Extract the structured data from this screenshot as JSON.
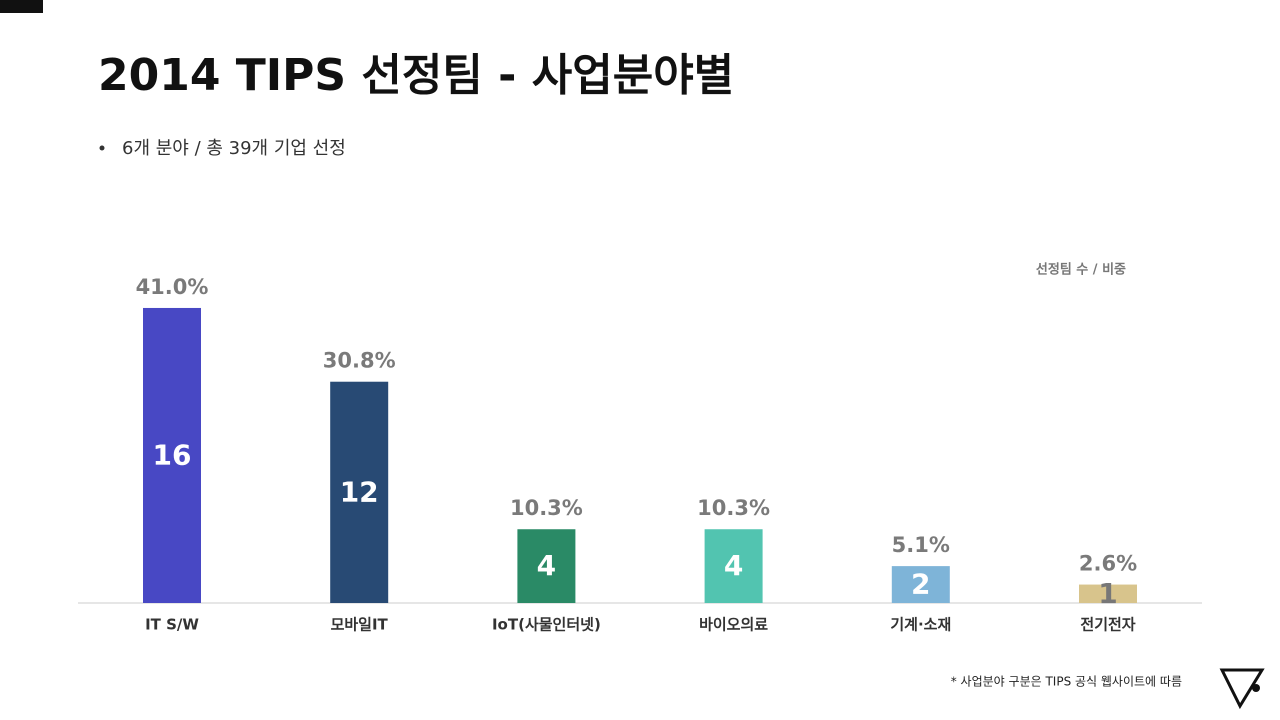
{
  "chart_data": {
    "type": "bar",
    "title": "2014 TIPS 선정팀 - 사업분야별",
    "subtitle": "6개  분야 / 총 39개 기업 선정",
    "legend_note": "선정팀 수 / 비중",
    "footnote": "* 사업분야 구분은 TIPS 공식 웹사이트에 따름",
    "categories": [
      "IT S/W",
      "모바일IT",
      "IoT(사물인터넷)",
      "바이오의료",
      "기계·소재",
      "전기전자"
    ],
    "values": [
      16,
      12,
      4,
      4,
      2,
      1
    ],
    "shares": [
      41.0,
      30.8,
      10.3,
      10.3,
      5.1,
      2.6
    ],
    "share_labels": [
      "41.0%",
      "30.8%",
      "10.3%",
      "10.3%",
      "5.1%",
      "2.6%"
    ],
    "colors": [
      "#4848c4",
      "#284a74",
      "#2a8a66",
      "#52c4b0",
      "#7eb4d8",
      "#d8c48c"
    ]
  }
}
